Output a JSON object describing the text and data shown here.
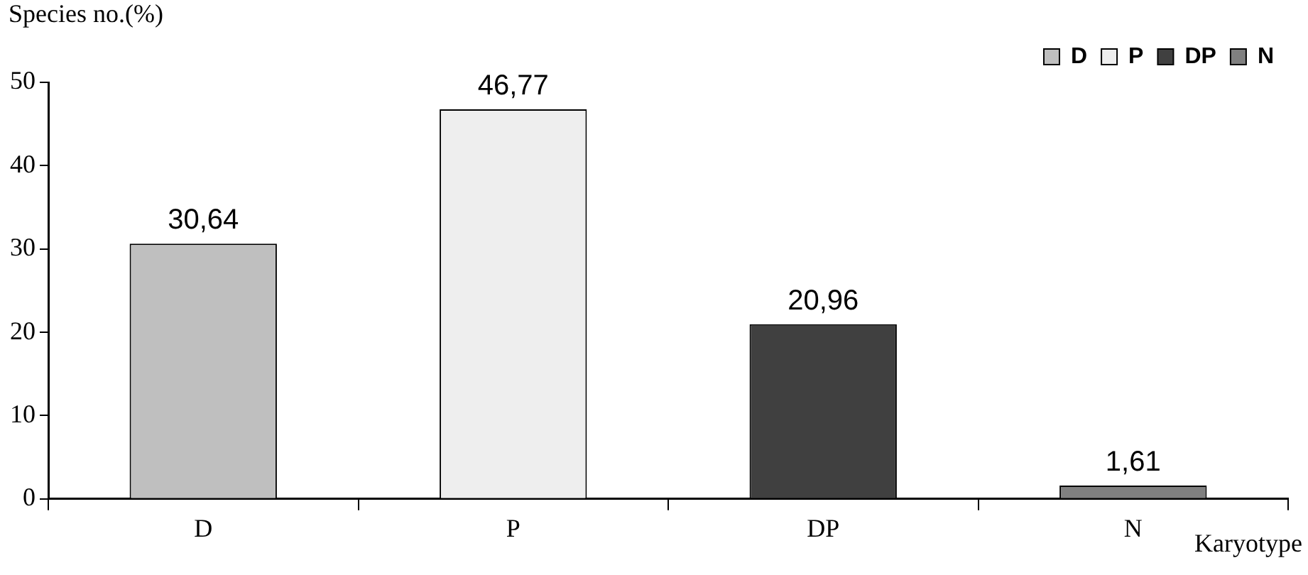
{
  "chart_data": {
    "type": "bar",
    "xlabel": "Karyotype",
    "ylabel": "Species no.(%)",
    "categories": [
      "D",
      "P",
      "DP",
      "N"
    ],
    "series": [
      {
        "name": "D",
        "color": "#bfbfbf",
        "values": [
          30.64,
          null,
          null,
          null
        ],
        "value_labels": [
          "30,64",
          null,
          null,
          null
        ]
      },
      {
        "name": "P",
        "color": "#eeeeee",
        "values": [
          null,
          46.77,
          null,
          null
        ],
        "value_labels": [
          null,
          "46,77",
          null,
          null
        ]
      },
      {
        "name": "DP",
        "color": "#404040",
        "values": [
          null,
          null,
          20.96,
          null
        ],
        "value_labels": [
          null,
          null,
          "20,96",
          null
        ]
      },
      {
        "name": "N",
        "color": "#808080",
        "values": [
          null,
          null,
          null,
          1.61
        ],
        "value_labels": [
          null,
          null,
          null,
          "1,61"
        ]
      }
    ],
    "ylim": [
      0,
      50
    ],
    "yticks": [
      0,
      10,
      20,
      30,
      40,
      50
    ],
    "legend": "top right",
    "grid": false
  }
}
